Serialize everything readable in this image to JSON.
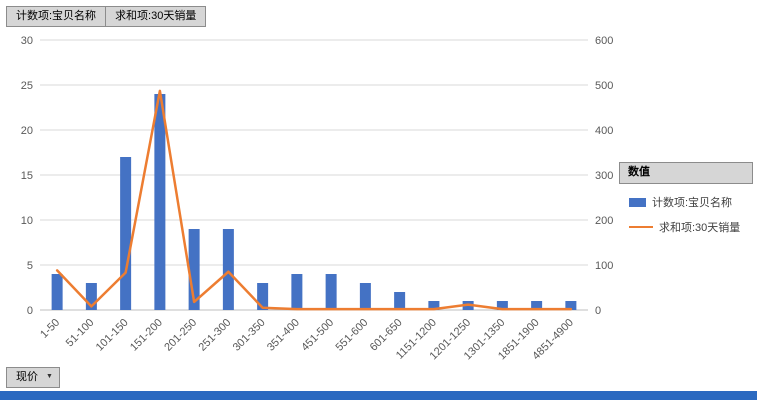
{
  "pivot_buttons": {
    "count_field": "计数项:宝贝名称",
    "sum_field": "求和项:30天销量"
  },
  "axis_filter": {
    "label": "现价",
    "dropdown_icon": "▼"
  },
  "legend": {
    "header": "数值",
    "items": [
      {
        "label": "计数项:宝贝名称",
        "type": "bar",
        "color": "#4472C4"
      },
      {
        "label": "求和项:30天销量",
        "type": "line",
        "color": "#ED7D31"
      }
    ]
  },
  "colors": {
    "bar": "#4472C4",
    "line": "#ED7D31",
    "gridline": "#d9d9d9",
    "axis_line": "#bfbfbf",
    "tick_text": "#595959",
    "button_bg": "#d6d6d6",
    "bottom_strip": "#2b69c0"
  },
  "chart_data": {
    "type": "bar",
    "subtype": "combo-bar-line",
    "categories": [
      "1-50",
      "51-100",
      "101-150",
      "151-200",
      "201-250",
      "251-300",
      "301-350",
      "351-400",
      "451-500",
      "551-600",
      "601-650",
      "1151-1200",
      "1201-1250",
      "1301-1350",
      "1851-1900",
      "4851-4900"
    ],
    "series": [
      {
        "name": "计数项:宝贝名称",
        "type": "bar",
        "axis": "left",
        "color": "#4472C4",
        "values": [
          4,
          3,
          17,
          24,
          9,
          9,
          3,
          4,
          4,
          3,
          2,
          1,
          1,
          1,
          1,
          1
        ]
      },
      {
        "name": "求和项:30天销量",
        "type": "line",
        "axis": "right",
        "color": "#ED7D31",
        "values": [
          88,
          8,
          83,
          487,
          18,
          85,
          5,
          2,
          2,
          2,
          2,
          2,
          12,
          2,
          2,
          2
        ]
      }
    ],
    "title": "",
    "xlabel": "",
    "ylabel_left": "",
    "ylabel_right": "",
    "left_axis": {
      "min": 0,
      "max": 30,
      "step": 5
    },
    "right_axis": {
      "min": 0,
      "max": 600,
      "step": 100
    },
    "grid": true,
    "legend_position": "right"
  }
}
